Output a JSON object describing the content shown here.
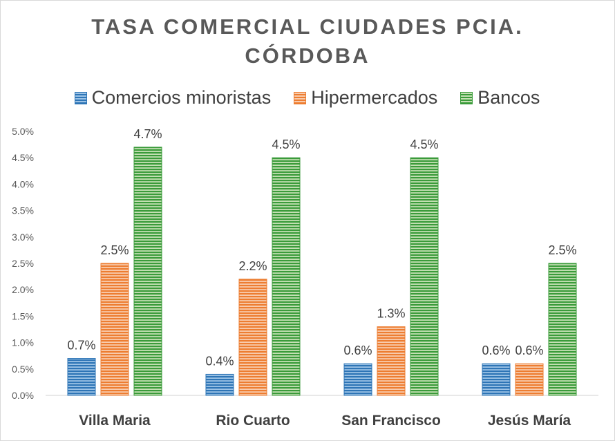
{
  "chart_data": {
    "type": "bar",
    "title_line1": "TASA COMERCIAL CIUDADES PCIA.",
    "title_line2": "CÓRDOBA",
    "categories": [
      "Villa Maria",
      "Rio Cuarto",
      "San Francisco",
      "Jesús María"
    ],
    "series": [
      {
        "name": "Comercios minoristas",
        "values": [
          0.7,
          0.4,
          0.6,
          0.6
        ],
        "labels": [
          "0.7%",
          "0.4%",
          "0.6%",
          "0.6%"
        ],
        "color": "#2e75b6",
        "stripe": "#9dc3e6"
      },
      {
        "name": "Hipermercados",
        "values": [
          2.5,
          2.2,
          1.3,
          0.6
        ],
        "labels": [
          "2.5%",
          "2.2%",
          "1.3%",
          "0.6%"
        ],
        "color": "#ed7d31",
        "stripe": "#f8cbad"
      },
      {
        "name": "Bancos",
        "values": [
          4.7,
          4.5,
          4.5,
          2.5
        ],
        "labels": [
          "4.7%",
          "4.5%",
          "4.5%",
          "2.5%"
        ],
        "color": "#3a9b3a",
        "stripe": "#c5e0b4"
      }
    ],
    "yticks": [
      "0.0%",
      "0.5%",
      "1.0%",
      "1.5%",
      "2.0%",
      "2.5%",
      "3.0%",
      "3.5%",
      "4.0%",
      "4.5%",
      "5.0%"
    ],
    "ylim": [
      0,
      5
    ],
    "legend_position": "top",
    "grid": false
  }
}
